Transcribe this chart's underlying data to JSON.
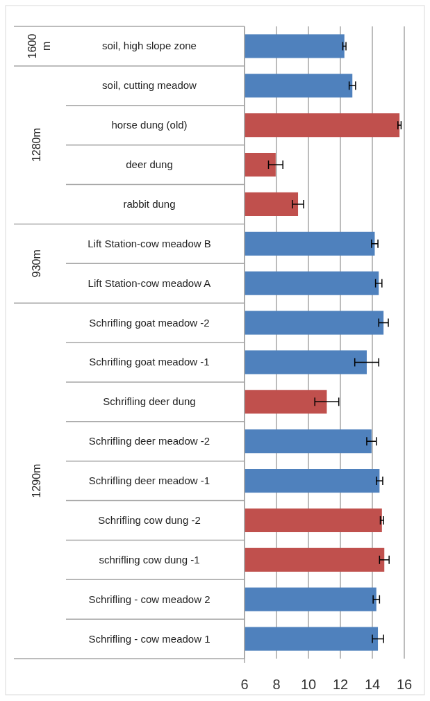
{
  "chart_data": {
    "type": "bar",
    "orientation": "horizontal",
    "categories": [
      "soil, high slope zone",
      "soil, cutting meadow",
      "horse dung (old)",
      "deer dung",
      "rabbit dung",
      "Lift Station-cow meadow B",
      "Lift Station-cow meadow A",
      "Schrifling goat meadow -2",
      "Schrifling goat meadow -1",
      "Schrifling deer dung",
      "Schrifling deer meadow -2",
      "Schrifling deer meadow -1",
      "Schrifling cow dung -2",
      "schrifling cow dung -1",
      "Schrifling - cow meadow 2",
      "Schrifling - cow meadow 1"
    ],
    "values": [
      12.25,
      12.75,
      15.7,
      7.95,
      9.35,
      14.15,
      14.4,
      14.7,
      13.65,
      11.15,
      13.95,
      14.45,
      14.6,
      14.75,
      14.25,
      14.35
    ],
    "errors": [
      0.1,
      0.2,
      0.1,
      0.45,
      0.35,
      0.2,
      0.2,
      0.3,
      0.75,
      0.75,
      0.3,
      0.2,
      0.1,
      0.3,
      0.2,
      0.35
    ],
    "colors": [
      "#4f81bd",
      "#4f81bd",
      "#c0504d",
      "#c0504d",
      "#c0504d",
      "#4f81bd",
      "#4f81bd",
      "#4f81bd",
      "#4f81bd",
      "#c0504d",
      "#4f81bd",
      "#4f81bd",
      "#c0504d",
      "#c0504d",
      "#4f81bd",
      "#4f81bd"
    ],
    "xlim": [
      6,
      16
    ],
    "xticks": [
      6,
      8,
      10,
      12,
      14,
      16
    ],
    "grid": "x",
    "annotations": [
      "1600 m",
      "1280m",
      "930m",
      "1290m"
    ]
  }
}
